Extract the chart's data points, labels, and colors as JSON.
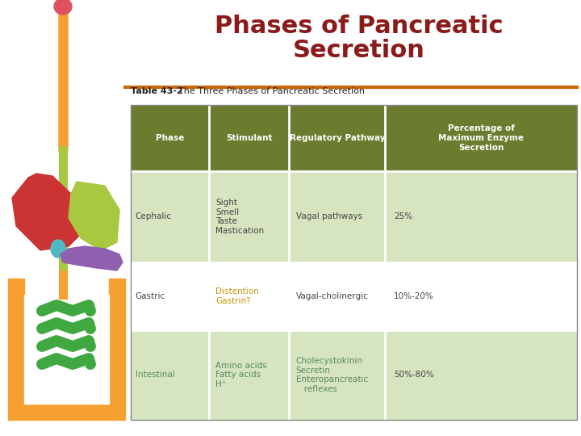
{
  "title_line1": "Phases of Pancreatic",
  "title_line2": "Secretion",
  "title_color": "#8B1A1A",
  "title_fontsize": 22,
  "title_fontweight": "bold",
  "separator_color": "#CC6600",
  "bg_color": "#FFFFFF",
  "table_caption_bold": "Table 43-2",
  "table_caption_normal": "  The Three Phases of Pancreatic Secretion",
  "header_bg": "#6B7C2E",
  "header_text_color": "#FFFFFF",
  "row_bg_alt": "#D6E4C0",
  "row_bg_white": "#FFFFFF",
  "cell_text_color": "#444444",
  "intestinal_text_color": "#5B8A5B",
  "gastric_stimulant_color": "#C8A050",
  "headers": [
    "Phase",
    "Stimulant",
    "Regulatory Pathway",
    "Percentage of\nMaximum Enzyme\nSecretion"
  ],
  "rows": [
    [
      "Cephalic",
      "Sight\nSmell\nTaste\nMastication",
      "Vagal pathways",
      "25%"
    ],
    [
      "Gastric",
      "Distention\nGastrin?",
      "Vagal-cholinergic",
      "10%-20%"
    ],
    [
      "Intestinal",
      "Amino acids\nFatty acids\nH⁺",
      "Cholecystokinin\nSecretin\nEnteropancreatic\n   reflexes",
      "50%-80%"
    ]
  ],
  "header_fontsize": 7.5,
  "cell_fontsize": 7.5,
  "caption_fontsize": 8.0
}
